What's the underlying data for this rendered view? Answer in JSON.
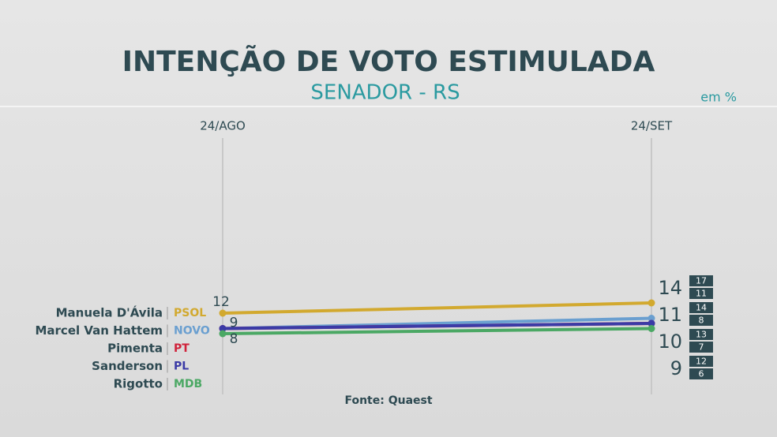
{
  "chart_data": {
    "type": "line",
    "title": "INTENÇÃO DE VOTO ESTIMULADA",
    "subtitle": "SENADOR - RS",
    "unit_note": "em %",
    "source": "Fonte: Quaest",
    "categories": [
      "24/AGO",
      "24/SET"
    ],
    "series": [
      {
        "name": "Manuela D'Ávila",
        "party": "PSOL",
        "color": "#d2a92f",
        "values": [
          12,
          14
        ],
        "high": 17,
        "low": 11
      },
      {
        "name": "Marcel Van Hattem",
        "party": "NOVO",
        "color": "#6a9fd0",
        "values": [
          9,
          11
        ],
        "high": 14,
        "low": 8
      },
      {
        "name": "Pimenta",
        "party": "PT",
        "color": "#d0223a",
        "values": [
          9,
          10
        ],
        "high": 13,
        "low": 7
      },
      {
        "name": "Sanderson",
        "party": "PL",
        "color": "#3b3aa6",
        "values": [
          9,
          10
        ],
        "high": 13,
        "low": 7
      },
      {
        "name": "Rigotto",
        "party": "MDB",
        "color": "#4ba864",
        "values": [
          8,
          9
        ],
        "high": 12,
        "low": 6
      }
    ]
  }
}
